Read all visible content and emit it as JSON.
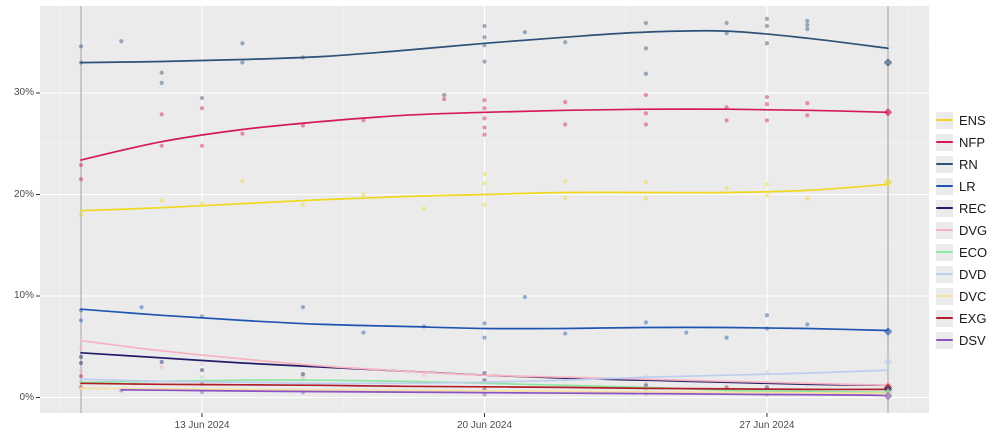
{
  "chart_data": {
    "type": "line",
    "title": "",
    "x_axis": {
      "tick_days": [
        3,
        10,
        17
      ],
      "tick_labels": [
        "13 Jun 2024",
        "20 Jun 2024",
        "27 Jun 2024"
      ],
      "minor_days": [
        -0.5,
        6.5,
        13.5,
        20.5
      ],
      "range_days": [
        0,
        20
      ]
    },
    "y_axis": {
      "ticks": [
        0,
        10,
        20,
        30
      ],
      "tick_labels": [
        "0%",
        "10%",
        "20%",
        "30%"
      ],
      "minor": [
        5,
        15,
        25,
        35
      ],
      "range": [
        0,
        38.5
      ]
    },
    "reference_line_days": [
      0,
      20
    ],
    "panel_bg": "#ebebeb",
    "grid_color": "#ffffff",
    "ref_line_color": "#a3a3a3",
    "series": [
      {
        "key": "ENS",
        "color": "#efd820",
        "trend": [
          [
            0,
            18.4
          ],
          [
            2,
            18.7
          ],
          [
            4,
            19.1
          ],
          [
            6,
            19.5
          ],
          [
            8,
            19.8
          ],
          [
            10,
            20.0
          ],
          [
            12,
            20.2
          ],
          [
            14,
            20.2
          ],
          [
            16,
            20.2
          ],
          [
            18,
            20.4
          ],
          [
            20,
            21.0
          ]
        ]
      },
      {
        "key": "NFP",
        "color": "#d41a5a",
        "trend": [
          [
            0,
            23.4
          ],
          [
            2,
            25.2
          ],
          [
            4,
            26.4
          ],
          [
            6,
            27.2
          ],
          [
            8,
            27.8
          ],
          [
            10,
            28.1
          ],
          [
            12,
            28.3
          ],
          [
            14,
            28.4
          ],
          [
            16,
            28.4
          ],
          [
            18,
            28.3
          ],
          [
            20,
            28.1
          ]
        ]
      },
      {
        "key": "RN",
        "color": "#2c5277",
        "trend": [
          [
            0,
            33.0
          ],
          [
            2,
            33.1
          ],
          [
            4,
            33.3
          ],
          [
            6,
            33.6
          ],
          [
            8,
            34.2
          ],
          [
            10,
            34.9
          ],
          [
            12,
            35.5
          ],
          [
            14,
            36.0
          ],
          [
            16,
            36.1
          ],
          [
            18,
            35.4
          ],
          [
            20,
            34.4
          ]
        ]
      },
      {
        "key": "LR",
        "color": "#1f55b0",
        "trend": [
          [
            0,
            8.7
          ],
          [
            2,
            8.1
          ],
          [
            4,
            7.6
          ],
          [
            6,
            7.2
          ],
          [
            8,
            7.0
          ],
          [
            10,
            6.8
          ],
          [
            12,
            6.8
          ],
          [
            14,
            6.9
          ],
          [
            16,
            6.9
          ],
          [
            18,
            6.8
          ],
          [
            20,
            6.6
          ]
        ]
      },
      {
        "key": "REC",
        "color": "#221e6b",
        "trend": [
          [
            0,
            4.4
          ],
          [
            2,
            3.9
          ],
          [
            4,
            3.4
          ],
          [
            6,
            3.0
          ],
          [
            8,
            2.6
          ],
          [
            10,
            2.2
          ],
          [
            12,
            1.9
          ],
          [
            14,
            1.7
          ],
          [
            16,
            1.5
          ],
          [
            18,
            1.3
          ],
          [
            20,
            1.2
          ]
        ]
      },
      {
        "key": "DVG",
        "color": "#f8b2c0",
        "trend": [
          [
            0,
            5.6
          ],
          [
            2,
            4.6
          ],
          [
            4,
            3.8
          ],
          [
            6,
            3.1
          ],
          [
            8,
            2.6
          ],
          [
            10,
            2.2
          ],
          [
            12,
            2.0
          ],
          [
            14,
            1.8
          ],
          [
            16,
            1.6
          ],
          [
            18,
            1.4
          ],
          [
            20,
            1.2
          ]
        ]
      },
      {
        "key": "ECO",
        "color": "#8ee79e",
        "trend": [
          [
            0,
            1.5
          ],
          [
            2,
            1.6
          ],
          [
            4,
            1.7
          ],
          [
            6,
            1.7
          ],
          [
            8,
            1.6
          ],
          [
            10,
            1.4
          ],
          [
            12,
            1.2
          ],
          [
            14,
            1.0
          ],
          [
            16,
            0.7
          ],
          [
            18,
            0.6
          ],
          [
            20,
            0.5
          ]
        ]
      },
      {
        "key": "DVD",
        "color": "#bdcdf0",
        "trend": [
          [
            0,
            1.8
          ],
          [
            2,
            1.6
          ],
          [
            4,
            1.5
          ],
          [
            6,
            1.4
          ],
          [
            8,
            1.4
          ],
          [
            10,
            1.5
          ],
          [
            12,
            1.7
          ],
          [
            14,
            2.0
          ],
          [
            16,
            2.2
          ],
          [
            18,
            2.4
          ],
          [
            20,
            2.7
          ]
        ]
      },
      {
        "key": "DVC",
        "color": "#f6dfa3",
        "trend": [
          [
            0,
            0.9
          ],
          [
            2,
            0.85
          ],
          [
            4,
            0.8
          ],
          [
            6,
            0.75
          ],
          [
            8,
            0.7
          ],
          [
            10,
            0.65
          ],
          [
            12,
            0.6
          ],
          [
            14,
            0.55
          ],
          [
            16,
            0.5
          ],
          [
            18,
            0.45
          ],
          [
            20,
            0.4
          ]
        ]
      },
      {
        "key": "EXG",
        "color": "#b01f29",
        "trend": [
          [
            0,
            1.4
          ],
          [
            2,
            1.3
          ],
          [
            4,
            1.25
          ],
          [
            6,
            1.2
          ],
          [
            8,
            1.1
          ],
          [
            10,
            1.05
          ],
          [
            12,
            1.0
          ],
          [
            14,
            0.9
          ],
          [
            16,
            0.85
          ],
          [
            18,
            0.8
          ],
          [
            20,
            0.8
          ]
        ]
      },
      {
        "key": "DSV",
        "color": "#8a52c5",
        "trend": [
          [
            1,
            0.75
          ],
          [
            3,
            0.68
          ],
          [
            5,
            0.6
          ],
          [
            7,
            0.55
          ],
          [
            9,
            0.5
          ],
          [
            11,
            0.45
          ],
          [
            13,
            0.4
          ],
          [
            15,
            0.35
          ],
          [
            17,
            0.3
          ],
          [
            19,
            0.25
          ],
          [
            20,
            0.2
          ]
        ]
      }
    ],
    "poll_points": [
      [
        "RN",
        0,
        34.6
      ],
      [
        "RN",
        0,
        33.0
      ],
      [
        "RN",
        1,
        35.1
      ],
      [
        "RN",
        2,
        32.0
      ],
      [
        "RN",
        2,
        31.0
      ],
      [
        "RN",
        3,
        29.5
      ],
      [
        "RN",
        4,
        34.9
      ],
      [
        "RN",
        4,
        33.0
      ],
      [
        "RN",
        5.5,
        33.5
      ],
      [
        "RN",
        9,
        29.8
      ],
      [
        "RN",
        10,
        36.6
      ],
      [
        "RN",
        10,
        35.5
      ],
      [
        "RN",
        10,
        34.7
      ],
      [
        "RN",
        10,
        33.1
      ],
      [
        "RN",
        11,
        36.0
      ],
      [
        "RN",
        12,
        35.0
      ],
      [
        "RN",
        14,
        36.9
      ],
      [
        "RN",
        14,
        34.4
      ],
      [
        "RN",
        14,
        31.9
      ],
      [
        "RN",
        16,
        36.9
      ],
      [
        "RN",
        16,
        35.9
      ],
      [
        "RN",
        17,
        37.3
      ],
      [
        "RN",
        17,
        36.6
      ],
      [
        "RN",
        17,
        34.9
      ],
      [
        "RN",
        18,
        37.1
      ],
      [
        "RN",
        18,
        36.7
      ],
      [
        "RN",
        18,
        36.3
      ],
      [
        "NFP",
        0,
        22.9
      ],
      [
        "NFP",
        0,
        21.5
      ],
      [
        "NFP",
        2,
        27.9
      ],
      [
        "NFP",
        2,
        24.8
      ],
      [
        "NFP",
        3,
        28.5
      ],
      [
        "NFP",
        3,
        24.8
      ],
      [
        "NFP",
        4,
        26.0
      ],
      [
        "NFP",
        5.5,
        26.8
      ],
      [
        "NFP",
        7,
        27.3
      ],
      [
        "NFP",
        9,
        29.4
      ],
      [
        "NFP",
        10,
        29.3
      ],
      [
        "NFP",
        10,
        28.5
      ],
      [
        "NFP",
        10,
        27.5
      ],
      [
        "NFP",
        10,
        26.6
      ],
      [
        "NFP",
        10,
        25.9
      ],
      [
        "NFP",
        12,
        29.1
      ],
      [
        "NFP",
        12,
        26.9
      ],
      [
        "NFP",
        14,
        29.8
      ],
      [
        "NFP",
        14,
        28.0
      ],
      [
        "NFP",
        14,
        26.9
      ],
      [
        "NFP",
        16,
        28.6
      ],
      [
        "NFP",
        16,
        27.3
      ],
      [
        "NFP",
        17,
        29.6
      ],
      [
        "NFP",
        17,
        28.9
      ],
      [
        "NFP",
        17,
        27.3
      ],
      [
        "NFP",
        18,
        29.0
      ],
      [
        "NFP",
        18,
        27.8
      ],
      [
        "ENS",
        0,
        18.0
      ],
      [
        "ENS",
        2,
        19.4
      ],
      [
        "ENS",
        3,
        19.1
      ],
      [
        "ENS",
        4,
        21.3
      ],
      [
        "ENS",
        5.5,
        19.0
      ],
      [
        "ENS",
        7,
        20.0
      ],
      [
        "ENS",
        8.5,
        18.6
      ],
      [
        "ENS",
        10,
        22.0
      ],
      [
        "ENS",
        10,
        21.1
      ],
      [
        "ENS",
        10,
        19.0
      ],
      [
        "ENS",
        12,
        21.3
      ],
      [
        "ENS",
        12,
        19.7
      ],
      [
        "ENS",
        14,
        21.2
      ],
      [
        "ENS",
        14,
        19.6
      ],
      [
        "ENS",
        16,
        20.6
      ],
      [
        "ENS",
        17,
        21.0
      ],
      [
        "ENS",
        17,
        19.9
      ],
      [
        "ENS",
        18,
        19.6
      ],
      [
        "LR",
        0,
        8.6
      ],
      [
        "LR",
        0,
        7.6
      ],
      [
        "LR",
        1.5,
        8.9
      ],
      [
        "LR",
        3,
        8.0
      ],
      [
        "LR",
        5.5,
        8.9
      ],
      [
        "LR",
        7,
        6.4
      ],
      [
        "LR",
        8.5,
        7.0
      ],
      [
        "LR",
        10,
        7.3
      ],
      [
        "LR",
        10,
        5.9
      ],
      [
        "LR",
        11,
        9.9
      ],
      [
        "LR",
        12,
        6.3
      ],
      [
        "LR",
        14,
        7.4
      ],
      [
        "LR",
        15,
        6.4
      ],
      [
        "LR",
        16,
        5.9
      ],
      [
        "LR",
        17,
        8.1
      ],
      [
        "LR",
        17,
        6.8
      ],
      [
        "LR",
        18,
        7.2
      ],
      [
        "DVG",
        0,
        4.9
      ],
      [
        "DVG",
        0,
        2.6
      ],
      [
        "DVG",
        2,
        3.0
      ],
      [
        "DVG",
        3,
        3.3
      ],
      [
        "DVG",
        5.5,
        2.1
      ],
      [
        "DVG",
        8.5,
        2.2
      ],
      [
        "DVG",
        10,
        1.5
      ],
      [
        "DVG",
        12,
        1.8
      ],
      [
        "DVG",
        14,
        1.5
      ],
      [
        "DVG",
        17,
        1.5
      ],
      [
        "DVG",
        18,
        1.3
      ],
      [
        "REC",
        0,
        4.0
      ],
      [
        "REC",
        0,
        3.4
      ],
      [
        "REC",
        2,
        3.5
      ],
      [
        "REC",
        3,
        2.7
      ],
      [
        "REC",
        5.5,
        2.3
      ],
      [
        "REC",
        10,
        2.4
      ],
      [
        "REC",
        10,
        1.7
      ],
      [
        "REC",
        14,
        1.2
      ],
      [
        "REC",
        17,
        1.0
      ],
      [
        "ECO",
        0,
        1.5
      ],
      [
        "ECO",
        3,
        2.0
      ],
      [
        "ECO",
        5.5,
        1.8
      ],
      [
        "ECO",
        10,
        1.0
      ],
      [
        "ECO",
        14,
        0.8
      ],
      [
        "ECO",
        16,
        0.6
      ],
      [
        "DVD",
        0,
        1.7
      ],
      [
        "DVD",
        3,
        1.2
      ],
      [
        "DVD",
        10,
        1.5
      ],
      [
        "DVD",
        14,
        2.1
      ],
      [
        "DVD",
        17,
        2.5
      ],
      [
        "EXG",
        0,
        2.1
      ],
      [
        "EXG",
        0,
        1.0
      ],
      [
        "EXG",
        3,
        1.5
      ],
      [
        "EXG",
        10,
        0.8
      ],
      [
        "EXG",
        16,
        1.0
      ],
      [
        "DVC",
        0,
        0.9
      ],
      [
        "DVC",
        10,
        0.5
      ],
      [
        "DSV",
        1,
        0.7
      ],
      [
        "DSV",
        3,
        0.5
      ],
      [
        "DSV",
        5.5,
        0.5
      ],
      [
        "DSV",
        10,
        0.3
      ],
      [
        "DSV",
        14,
        0.4
      ],
      [
        "DSV",
        17,
        0.3
      ]
    ],
    "result_markers": [
      [
        "RN",
        20,
        33.0
      ],
      [
        "NFP",
        20,
        28.1
      ],
      [
        "ENS",
        20,
        21.2
      ],
      [
        "LR",
        20,
        6.5
      ],
      [
        "DVD",
        20,
        3.5
      ],
      [
        "DVG",
        20,
        1.15
      ],
      [
        "EXG",
        20,
        1.0
      ],
      [
        "REC",
        20,
        0.8
      ],
      [
        "ECO",
        20,
        0.5
      ],
      [
        "DVC",
        20,
        0.3
      ],
      [
        "DSV",
        20,
        0.15
      ]
    ]
  },
  "legend": {
    "items": [
      "ENS",
      "NFP",
      "RN",
      "LR",
      "REC",
      "DVG",
      "ECO",
      "DVD",
      "DVC",
      "EXG",
      "DSV"
    ]
  }
}
